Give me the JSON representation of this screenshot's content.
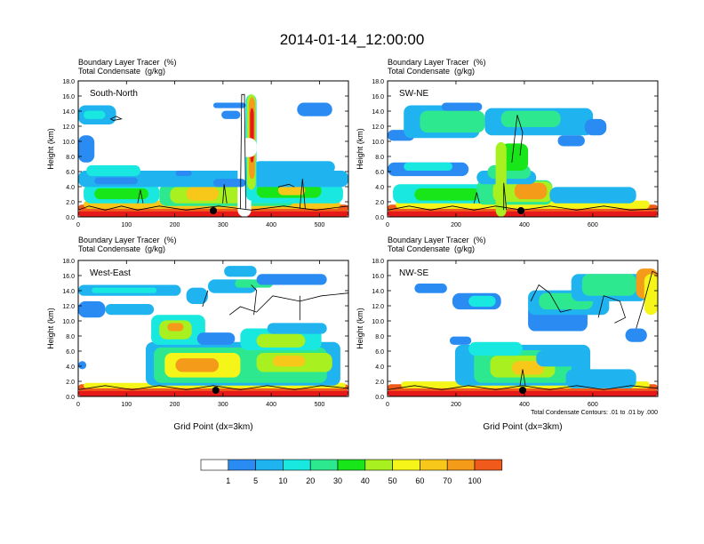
{
  "title": "2014-01-14_12:00:00",
  "colors": {
    "levels": [
      "#ffffff",
      "#2a8cf2",
      "#1fb4f0",
      "#19e8e0",
      "#2ee890",
      "#19e619",
      "#a8f020",
      "#f5f51a",
      "#f7c81a",
      "#f59b1a",
      "#f05a1a",
      "#e61919"
    ],
    "contour": "#000000"
  },
  "chart_data": {
    "type": "heatmap",
    "variables": [
      "Boundary Layer Tracer  (%)",
      "Total Condensate  (g/kg)"
    ],
    "panels": [
      {
        "name": "South-North",
        "line1": "Boundary Layer Tracer  (%)",
        "line2": "Total Condensate  (g/kg)",
        "xlim": [
          0,
          560
        ],
        "xticks": [
          "0",
          "100",
          "200",
          "300",
          "400",
          "500"
        ],
        "xtick_values": [
          0,
          100,
          200,
          300,
          400,
          500
        ],
        "ylabel": "Height (km)",
        "ylim": [
          0,
          18
        ],
        "yticks": [
          "0.0",
          "2.0",
          "4.0",
          "6.0",
          "8.0",
          "10.0",
          "12.0",
          "14.0",
          "16.0",
          "18.0"
        ],
        "marker_x": 280,
        "xlabel": ""
      },
      {
        "name": "SW-NE",
        "line1": "Boundary Layer Tracer  (%)",
        "line2": "Total Condensate  (g/kg)",
        "xlim": [
          0,
          790
        ],
        "xticks": [
          "0",
          "200",
          "400",
          "600"
        ],
        "xtick_values": [
          0,
          200,
          400,
          600
        ],
        "ylabel": "Height (km)",
        "ylim": [
          0,
          18
        ],
        "yticks": [
          "0.0",
          "2.0",
          "4.0",
          "6.0",
          "8.0",
          "10.0",
          "12.0",
          "14.0",
          "16.0",
          "18.0"
        ],
        "marker_x": 390,
        "xlabel": ""
      },
      {
        "name": "West-East",
        "line1": "Boundary Layer Tracer  (%)",
        "line2": "Total Condensate  (g/kg)",
        "xlim": [
          0,
          560
        ],
        "xticks": [
          "0",
          "100",
          "200",
          "300",
          "400",
          "500"
        ],
        "xtick_values": [
          0,
          100,
          200,
          300,
          400,
          500
        ],
        "ylabel": "Height (km)",
        "ylim": [
          0,
          18
        ],
        "yticks": [
          "0.0",
          "2.0",
          "4.0",
          "6.0",
          "8.0",
          "10.0",
          "12.0",
          "14.0",
          "16.0",
          "18.0"
        ],
        "marker_x": 285,
        "xlabel": "Grid Point (dx=3km)"
      },
      {
        "name": "NW-SE",
        "line1": "Boundary Layer Tracer  (%)",
        "line2": "Total Condensate  (g/kg)",
        "xlim": [
          0,
          790
        ],
        "xticks": [
          "0",
          "200",
          "400",
          "600"
        ],
        "xtick_values": [
          0,
          200,
          400,
          600
        ],
        "ylabel": "Height (km)",
        "ylim": [
          0,
          18
        ],
        "yticks": [
          "0.0",
          "2.0",
          "4.0",
          "6.0",
          "8.0",
          "10.0",
          "12.0",
          "14.0",
          "16.0",
          "18.0"
        ],
        "marker_x": 395,
        "xlabel": "Grid Point (dx=3km)",
        "note": "Total Condensate Contours: .01 to .01 by .000"
      }
    ],
    "colorbar": {
      "labels": [
        "1",
        "5",
        "10",
        "20",
        "30",
        "40",
        "50",
        "60",
        "70",
        "100"
      ]
    }
  }
}
